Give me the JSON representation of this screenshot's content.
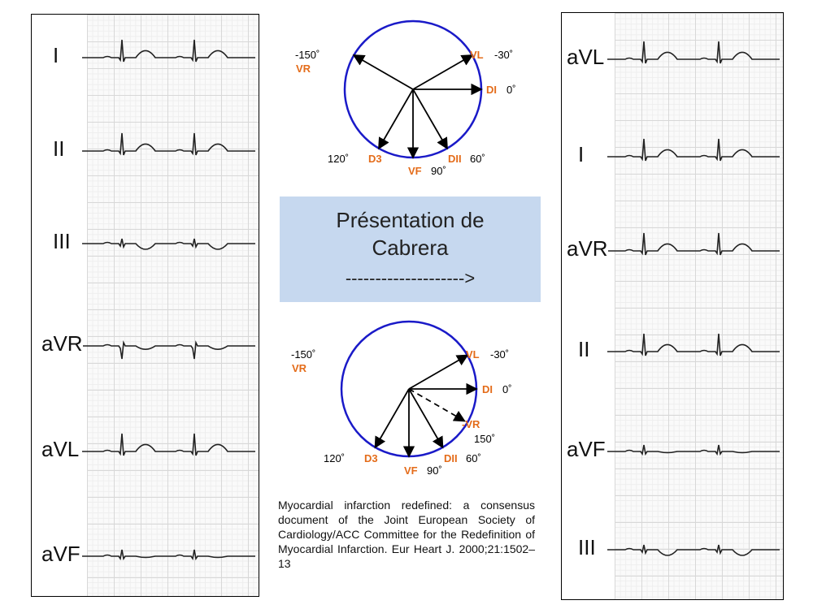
{
  "left_strip": {
    "leads": [
      {
        "label": "I",
        "type": "up"
      },
      {
        "label": "II",
        "type": "up"
      },
      {
        "label": "III",
        "type": "inv"
      },
      {
        "label": "aVR",
        "type": "neg"
      },
      {
        "label": "aVL",
        "type": "up"
      },
      {
        "label": "aVF",
        "type": "flat"
      }
    ]
  },
  "right_strip": {
    "leads": [
      {
        "label": "aVL",
        "type": "up"
      },
      {
        "label": "I",
        "type": "up"
      },
      {
        "label": "aVR",
        "type": "up"
      },
      {
        "label": "II",
        "type": "up"
      },
      {
        "label": "aVF",
        "type": "flat"
      },
      {
        "label": "III",
        "type": "inv"
      }
    ]
  },
  "diagram_top": {
    "VR": "VR",
    "VR_angle": "-150˚",
    "VL": "VL",
    "VL_angle": "-30˚",
    "DI": "DI",
    "DI_angle": "0˚",
    "DII": "DII",
    "DII_angle": "60˚",
    "VF": "VF",
    "VF_angle": "90˚",
    "D3": "D3",
    "D3_angle": "120˚"
  },
  "diagram_bottom": {
    "VR": "VR",
    "VR_angle": "-150˚",
    "VL": "VL",
    "VL_angle": "-30˚",
    "DI": "DI",
    "DI_angle": "0˚",
    "mVR": "-VR",
    "mVR_angle": "150˚",
    "DII": "DII",
    "DII_angle": "60˚",
    "VF": "VF",
    "VF_angle": "90˚",
    "D3": "D3",
    "D3_angle": "120˚"
  },
  "title_box": {
    "line1": "Présentation de",
    "line2": "Cabrera",
    "arrow": "-------------------->"
  },
  "reference": "Myocardial infarction redefined: a consensus document of the Joint European Society of Cardiology/ACC Committee for the Redefinition of Myocardial Infarction. Eur Heart J. 2000;21:1502–13",
  "colors": {
    "circle": "#1a1ac8",
    "orange": "#e46c1a",
    "box": "#c6d8ef"
  }
}
